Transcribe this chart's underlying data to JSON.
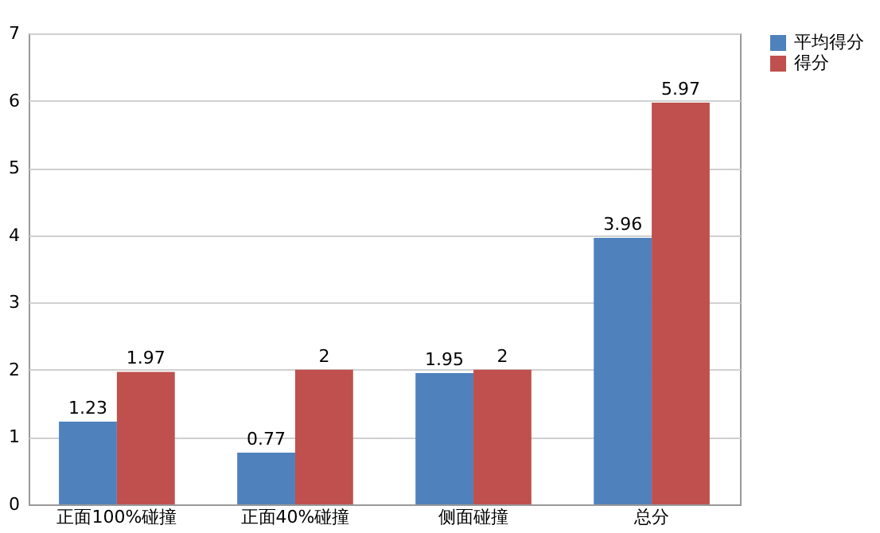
{
  "chart_data": {
    "type": "bar",
    "categories": [
      "正面100%碰撞",
      "正面40%碰撞",
      "侧面碰撞",
      "总分"
    ],
    "series": [
      {
        "name": "平均得分",
        "color": "#4f81bd",
        "values": [
          1.23,
          0.77,
          1.95,
          3.96
        ]
      },
      {
        "name": "得分",
        "color": "#c0504d",
        "values": [
          1.97,
          2,
          2,
          5.97
        ]
      }
    ],
    "ylim": [
      0,
      7
    ],
    "yticks": [
      0,
      1,
      2,
      3,
      4,
      5,
      6,
      7
    ],
    "grid": "y",
    "legend": "right",
    "data_labels": true
  }
}
